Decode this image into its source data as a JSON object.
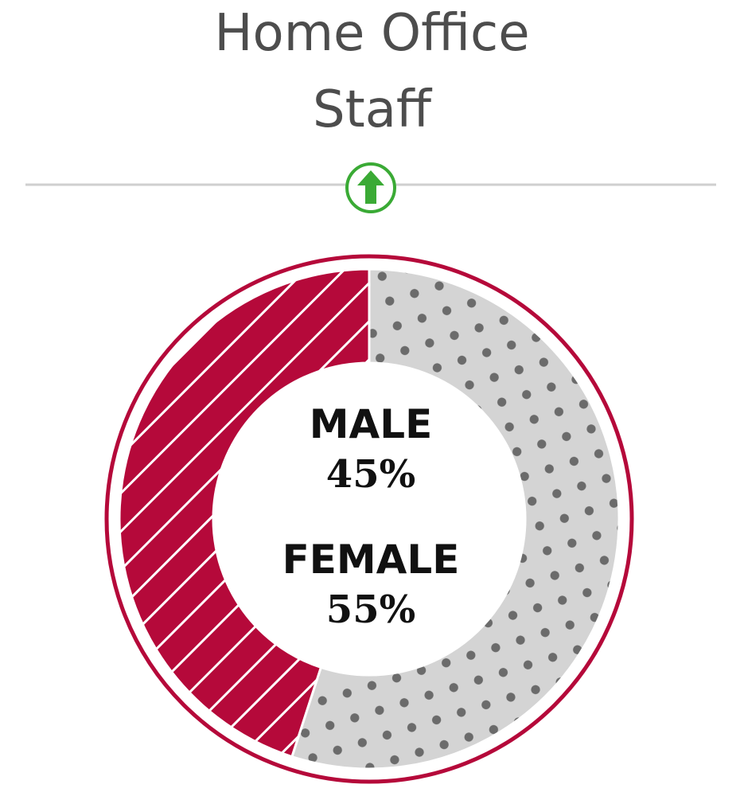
{
  "title": {
    "line1": "Home Office",
    "line2": "Staff"
  },
  "trend_icon": {
    "name": "up-arrow-icon",
    "color": "#3aaa35"
  },
  "chart_data": {
    "type": "pie",
    "variant": "donut",
    "slices": [
      {
        "label": "MALE",
        "value": 45,
        "display": "45%",
        "color": "#b5093a",
        "pattern": "diagonal-lines"
      },
      {
        "label": "FEMALE",
        "value": 55,
        "display": "55%",
        "color": "#d4d4d4",
        "pattern": "dots"
      }
    ],
    "start": "top",
    "direction": "clockwise",
    "outline_color": "#b5093a"
  }
}
